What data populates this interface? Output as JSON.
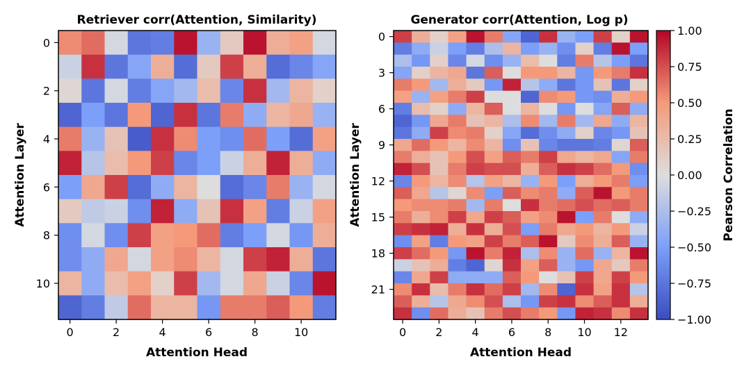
{
  "chart_data": [
    {
      "type": "heatmap",
      "title": "Retriever corr(Attention, Similarity)",
      "xlabel": "Attention Head",
      "ylabel": "Attention Layer",
      "xticks": [
        0,
        2,
        4,
        6,
        8,
        10
      ],
      "yticks": [
        0,
        2,
        4,
        6,
        8,
        10
      ],
      "n_rows": 12,
      "n_cols": 12,
      "values": [
        [
          0.55,
          0.65,
          -0.05,
          -0.75,
          -0.7,
          0.95,
          -0.35,
          0.15,
          0.95,
          0.35,
          0.45,
          -0.05
        ],
        [
          -0.1,
          0.85,
          -0.75,
          -0.45,
          0.35,
          -0.8,
          0.15,
          0.8,
          0.35,
          -0.8,
          -0.65,
          -0.45
        ],
        [
          0.05,
          -0.75,
          -0.05,
          -0.7,
          -0.45,
          -0.3,
          0.25,
          -0.65,
          0.85,
          -0.3,
          0.3,
          0.1
        ],
        [
          -0.85,
          -0.5,
          -0.75,
          0.5,
          -0.85,
          0.85,
          -0.75,
          0.6,
          -0.4,
          0.3,
          0.4,
          -0.35
        ],
        [
          0.6,
          -0.35,
          0.2,
          -0.9,
          0.85,
          0.55,
          -0.5,
          -0.6,
          0.65,
          -0.5,
          -0.8,
          0.45
        ],
        [
          0.9,
          -0.2,
          0.25,
          0.5,
          0.8,
          -0.65,
          -0.5,
          -0.1,
          0.35,
          0.9,
          0.35,
          -0.4
        ],
        [
          -0.5,
          0.4,
          0.8,
          -0.8,
          -0.4,
          0.3,
          0.0,
          -0.8,
          -0.65,
          0.6,
          -0.35,
          -0.05
        ],
        [
          0.15,
          -0.15,
          -0.1,
          -0.6,
          0.9,
          -0.4,
          0.2,
          0.85,
          0.45,
          -0.7,
          -0.1,
          0.45
        ],
        [
          -0.6,
          -0.05,
          -0.6,
          0.8,
          0.45,
          0.5,
          0.65,
          -0.7,
          -0.5,
          -0.05,
          -0.55,
          0.35
        ],
        [
          -0.6,
          -0.4,
          0.4,
          -0.05,
          0.45,
          0.55,
          0.3,
          -0.05,
          0.8,
          0.9,
          0.35,
          -0.75
        ],
        [
          0.3,
          -0.4,
          0.25,
          0.45,
          0.1,
          0.8,
          -0.3,
          -0.05,
          0.4,
          -0.1,
          -0.65,
          0.95
        ],
        [
          -0.85,
          -0.7,
          -0.15,
          0.65,
          0.3,
          0.3,
          -0.55,
          0.6,
          0.6,
          0.7,
          0.5,
          -0.7
        ]
      ]
    },
    {
      "type": "heatmap",
      "title": "Generator corr(Attention, Log p)",
      "xlabel": "Attention Head",
      "ylabel": "Attention Layer",
      "xticks": [
        0,
        2,
        4,
        6,
        8,
        10,
        12
      ],
      "yticks": [
        0,
        3,
        6,
        9,
        12,
        15,
        18,
        21
      ],
      "n_rows": 24,
      "n_cols": 14,
      "colorbar": {
        "label": "Pearson Correlation",
        "ticks": [
          "1.00",
          "0.75",
          "0.50",
          "0.25",
          "0.00",
          "−0.25",
          "−0.50",
          "−0.75",
          "−1.00"
        ],
        "vmin": -1.0,
        "vmax": 1.0
      },
      "values": [
        [
          0.8,
          0.35,
          0.1,
          0.45,
          0.95,
          0.6,
          -0.45,
          -0.85,
          0.85,
          -0.35,
          -0.5,
          0.8,
          0.1,
          0.95
        ],
        [
          -0.7,
          -0.4,
          -0.1,
          -0.5,
          -0.7,
          -0.25,
          0.3,
          -0.5,
          -0.35,
          -0.6,
          0.1,
          -0.7,
          0.95,
          -0.5
        ],
        [
          -0.25,
          -0.55,
          0.1,
          -0.65,
          -0.05,
          -0.6,
          -0.35,
          0.25,
          0.0,
          -0.7,
          0.6,
          -0.2,
          -0.5,
          -0.75
        ],
        [
          -0.45,
          0.1,
          0.3,
          0.4,
          -0.75,
          0.7,
          0.0,
          0.5,
          0.5,
          0.3,
          -0.55,
          0.5,
          0.6,
          0.85
        ],
        [
          0.6,
          0.5,
          -0.3,
          0.35,
          0.15,
          -0.55,
          0.9,
          -0.2,
          -0.4,
          -0.75,
          -0.55,
          0.2,
          -0.75,
          0.1
        ],
        [
          0.45,
          -0.35,
          0.45,
          0.6,
          0.8,
          0.0,
          0.0,
          -0.85,
          0.55,
          0.5,
          -0.55,
          -0.6,
          0.35,
          0.5
        ],
        [
          -0.7,
          0.25,
          0.1,
          -0.4,
          0.3,
          0.7,
          0.0,
          0.3,
          0.0,
          -0.55,
          0.0,
          -0.45,
          0.7,
          -0.4
        ],
        [
          -0.85,
          -0.55,
          0.4,
          0.6,
          0.2,
          0.3,
          -0.25,
          0.55,
          -0.3,
          0.6,
          -0.3,
          0.4,
          -0.4,
          0.3
        ],
        [
          -0.75,
          -0.4,
          0.8,
          0.55,
          0.6,
          0.1,
          -0.45,
          -0.8,
          -0.6,
          -0.4,
          0.1,
          -0.65,
          -0.55,
          0.2
        ],
        [
          0.4,
          0.65,
          0.5,
          0.3,
          0.55,
          0.3,
          -0.6,
          0.2,
          -0.65,
          -0.75,
          -0.75,
          -0.7,
          0.05,
          0.7
        ],
        [
          0.6,
          0.35,
          0.2,
          0.5,
          0.75,
          0.45,
          0.7,
          0.6,
          0.8,
          0.4,
          0.3,
          0.4,
          -0.45,
          0.6
        ],
        [
          0.9,
          0.75,
          0.2,
          0.6,
          0.8,
          0.75,
          0.75,
          0.35,
          0.7,
          0.85,
          0.8,
          0.65,
          0.5,
          -0.6
        ],
        [
          -0.65,
          0.5,
          0.3,
          0.55,
          -0.2,
          0.45,
          0.3,
          -0.35,
          0.5,
          -0.5,
          0.35,
          0.5,
          0.6,
          -0.5
        ],
        [
          0.7,
          0.4,
          -0.2,
          0.05,
          0.55,
          -0.5,
          0.7,
          0.55,
          0.6,
          -0.4,
          0.7,
          0.95,
          0.5,
          0.6
        ],
        [
          0.5,
          0.55,
          0.55,
          0.6,
          -0.3,
          0.6,
          0.0,
          0.85,
          0.6,
          0.65,
          0.75,
          0.65,
          0.7,
          0.6
        ],
        [
          0.6,
          0.35,
          0.55,
          0.8,
          0.4,
          0.8,
          0.7,
          0.45,
          0.55,
          0.95,
          -0.5,
          0.6,
          0.0,
          -0.4
        ],
        [
          0.8,
          0.85,
          0.9,
          0.35,
          0.85,
          0.35,
          0.75,
          -0.5,
          0.6,
          0.4,
          0.5,
          0.3,
          0.5,
          -0.1
        ],
        [
          -0.6,
          0.45,
          -0.7,
          0.5,
          0.45,
          0.8,
          0.6,
          0.7,
          0.95,
          0.15,
          0.55,
          0.35,
          0.7,
          -0.35
        ],
        [
          0.8,
          0.65,
          0.5,
          -0.55,
          0.95,
          0.6,
          0.9,
          -0.25,
          0.55,
          -0.35,
          0.65,
          -0.35,
          0.3,
          0.95
        ],
        [
          -0.1,
          0.2,
          0.35,
          -0.7,
          -0.85,
          0.05,
          0.85,
          0.45,
          0.7,
          -0.35,
          -0.55,
          0.4,
          0.15,
          0.6
        ],
        [
          -0.65,
          0.4,
          0.8,
          -0.4,
          -0.4,
          -0.4,
          0.7,
          0.5,
          0.0,
          0.2,
          0.8,
          0.4,
          0.8,
          0.5
        ],
        [
          0.55,
          0.85,
          0.25,
          0.6,
          0.85,
          0.65,
          0.8,
          -0.3,
          0.55,
          -0.85,
          0.85,
          0.45,
          0.85,
          -0.2
        ],
        [
          0.7,
          0.35,
          -0.2,
          0.4,
          0.55,
          0.75,
          -0.25,
          -0.55,
          0.8,
          0.85,
          0.55,
          0.7,
          0.85,
          0.35
        ],
        [
          0.85,
          -0.6,
          0.65,
          0.35,
          0.2,
          0.6,
          0.75,
          0.6,
          0.5,
          -0.55,
          0.9,
          0.85,
          0.55,
          0.85
        ]
      ]
    }
  ]
}
